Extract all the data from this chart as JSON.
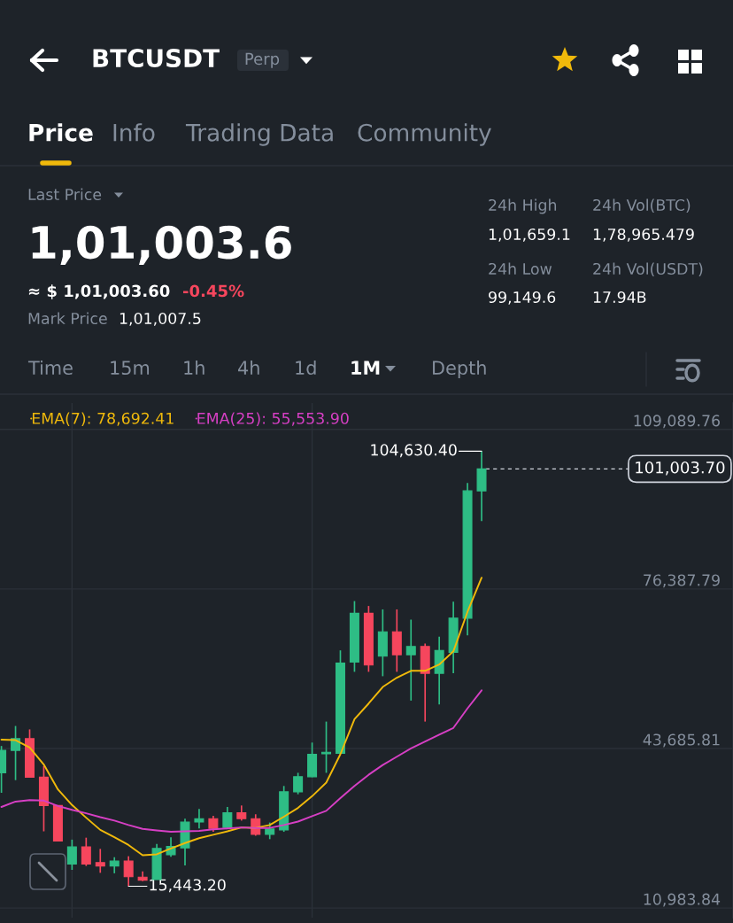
{
  "chart_data": {
    "type": "candlestick",
    "title": "BTCUSDT",
    "categories": [
      null,
      null,
      null,
      null,
      null,
      null,
      null,
      null,
      null,
      null,
      null,
      null,
      null,
      null,
      null,
      null,
      null,
      null,
      null,
      null,
      null,
      null,
      null,
      null,
      null,
      null,
      null,
      null,
      null,
      null,
      null,
      null,
      null,
      null,
      null
    ],
    "ohlc": [
      [
        38700,
        44200,
        34600,
        43300
      ],
      [
        43300,
        48300,
        37200,
        45700
      ],
      [
        45700,
        47600,
        37800,
        37800
      ],
      [
        37800,
        40100,
        26700,
        32000
      ],
      [
        32000,
        32000,
        24700,
        24700
      ],
      [
        20000,
        25000,
        18800,
        23500
      ],
      [
        23500,
        25400,
        19600,
        20000
      ],
      [
        20300,
        23100,
        18200,
        19600
      ],
      [
        19600,
        21400,
        18100,
        20600
      ],
      [
        20600,
        21600,
        15443.2,
        17400
      ],
      [
        17300,
        18500,
        16500,
        16700
      ],
      [
        16800,
        24100,
        16800,
        23200
      ],
      [
        21900,
        25500,
        21500,
        23600
      ],
      [
        23300,
        29300,
        19700,
        28600
      ],
      [
        28600,
        31300,
        27300,
        29300
      ],
      [
        29300,
        29900,
        26600,
        27300
      ],
      [
        27500,
        31700,
        27300,
        30500
      ],
      [
        30500,
        32000,
        28900,
        29300
      ],
      [
        29300,
        30200,
        25800,
        26100
      ],
      [
        26100,
        28500,
        25100,
        27200
      ],
      [
        27000,
        36000,
        26600,
        34800
      ],
      [
        34800,
        38700,
        34300,
        37900
      ],
      [
        37900,
        44900,
        37800,
        42500
      ],
      [
        42600,
        49200,
        38700,
        42900
      ],
      [
        42700,
        63800,
        42700,
        61200
      ],
      [
        61400,
        73900,
        59400,
        71400
      ],
      [
        71400,
        72900,
        59400,
        60800
      ],
      [
        62600,
        72200,
        58500,
        67600
      ],
      [
        67600,
        72200,
        59400,
        62900
      ],
      [
        62900,
        70100,
        53500,
        64600
      ],
      [
        64600,
        65200,
        49200,
        59100
      ],
      [
        59100,
        66600,
        52700,
        63800
      ],
      [
        63400,
        73800,
        59100,
        70400
      ],
      [
        70400,
        98100,
        66900,
        96500
      ],
      [
        96500,
        104630.4,
        90300,
        101003.7
      ]
    ],
    "colors": [
      "#2ebd85",
      "#2ebd85",
      "#f6465d",
      "#f6465d",
      "#f6465d",
      "#2ebd85",
      "#f6465d",
      "#f6465d",
      "#2ebd85",
      "#f6465d",
      "#f6465d",
      "#2ebd85",
      "#2ebd85",
      "#2ebd85",
      "#2ebd85",
      "#f6465d",
      "#2ebd85",
      "#f6465d",
      "#f6465d",
      "#2ebd85",
      "#2ebd85",
      "#2ebd85",
      "#2ebd85",
      "#2ebd85",
      "#2ebd85",
      "#2ebd85",
      "#f6465d",
      "#2ebd85",
      "#f6465d",
      "#2ebd85",
      "#f6465d",
      "#2ebd85",
      "#2ebd85",
      "#2ebd85",
      "#2ebd85"
    ],
    "series": [
      {
        "name": "EMA(7): 78,692.41",
        "type": "line",
        "color": "#f0b90b",
        "values": [
          45500,
          45400,
          43900,
          40400,
          35300,
          32100,
          29500,
          27000,
          25500,
          23900,
          21800,
          22000,
          23200,
          24300,
          25300,
          26000,
          26700,
          27500,
          27400,
          28000,
          29700,
          31500,
          33900,
          36700,
          42500,
          49700,
          52900,
          56300,
          58200,
          59600,
          59600,
          60900,
          63600,
          71700,
          78700
        ]
      },
      {
        "name": "EMA(25): 55,553.90",
        "type": "line",
        "color": "#d63fc4",
        "values": [
          31700,
          32800,
          33100,
          33000,
          31900,
          31100,
          30400,
          29600,
          28900,
          28000,
          27200,
          26900,
          26600,
          26700,
          26800,
          27100,
          27300,
          27500,
          27400,
          27400,
          28000,
          28700,
          29800,
          30900,
          33500,
          36000,
          38300,
          40300,
          42000,
          43700,
          45100,
          46500,
          47900,
          51900,
          55600
        ]
      }
    ],
    "ylim": [
      9000,
      114500
    ],
    "yticks": [
      {
        "value": 109089.76,
        "label": "109,089.76"
      },
      {
        "value": 76387.79,
        "label": "76,387.79"
      },
      {
        "value": 43685.81,
        "label": "43,685.81"
      },
      {
        "value": 10983.84,
        "label": "10,983.84"
      }
    ],
    "tick_labels": "y",
    "grid": true,
    "legend": "top left",
    "ref_lines": [
      {
        "axis": "y",
        "value": 101003.7,
        "label": "101,003.70",
        "color": "#cfd3dc",
        "line_style": "dashed"
      }
    ],
    "annotations": [
      "Perp",
      "Price",
      "Info",
      "Trading Data",
      "Community",
      "Last Price",
      "1,01,003.6",
      "≈ $ 1,01,003.60",
      "-0.45%",
      "Mark Price",
      "1,01,007.5",
      "24h High",
      "1,01,659.1",
      "24h Low",
      "99,149.6",
      "24h Vol(BTC)",
      "1,78,965.479",
      "24h Vol(USDT)",
      "17.94B",
      "Time",
      "15m",
      "1h",
      "4h",
      "1d",
      "1M",
      "Depth",
      "104,630.40",
      "15,443.20"
    ]
  }
}
